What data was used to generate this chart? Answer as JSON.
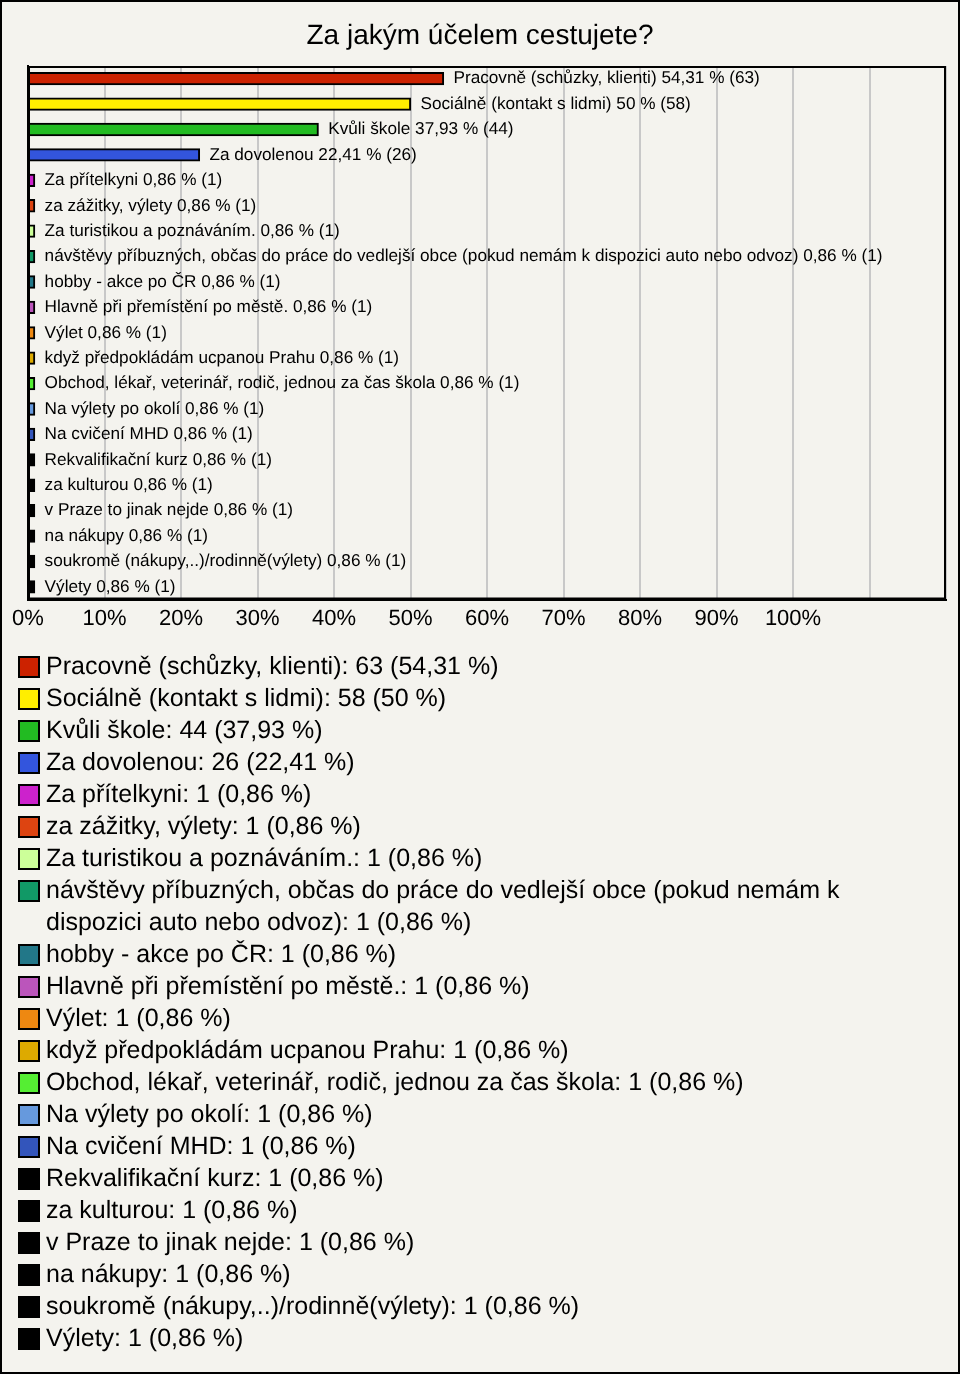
{
  "chart_data": {
    "type": "bar",
    "orientation": "horizontal",
    "title": "Za jakým účelem cestujete?",
    "categories": [
      "Pracovně (schůzky, klienti)",
      "Sociálně (kontakt s lidmi)",
      "Kvůli škole",
      "Za dovolenou",
      "Za přítelkyni",
      "za zážitky, výlety",
      "Za turistikou a poznáváním.",
      "návštěvy příbuzných, občas do práce do vedlejší obce (pokud nemám k dispozici auto nebo odvoz)",
      "hobby - akce po ČR",
      "Hlavně při přemístění po městě.",
      "Výlet",
      "když předpokládám ucpanou Prahu",
      "Obchod, lékař, veterinář, rodič, jednou za čas škola",
      "Na výlety po okolí",
      "Na cvičení MHD",
      "Rekvalifikační kurz",
      "za kulturou",
      "v Praze to jinak nejde",
      "na nákupy",
      "soukromě (nákupy,..)/rodinně(výlety)",
      "Výlety"
    ],
    "values": [
      54.31,
      50,
      37.93,
      22.41,
      0.86,
      0.86,
      0.86,
      0.86,
      0.86,
      0.86,
      0.86,
      0.86,
      0.86,
      0.86,
      0.86,
      0.86,
      0.86,
      0.86,
      0.86,
      0.86,
      0.86
    ],
    "value_labels": [
      "54,31 % (63)",
      "50 % (58)",
      "37,93 % (44)",
      "22,41 % (26)",
      "0,86 % (1)",
      "0,86 % (1)",
      "0,86 % (1)",
      "0,86 % (1)",
      "0,86 % (1)",
      "0,86 % (1)",
      "0,86 % (1)",
      "0,86 % (1)",
      "0,86 % (1)",
      "0,86 % (1)",
      "0,86 % (1)",
      "0,86 % (1)",
      "0,86 % (1)",
      "0,86 % (1)",
      "0,86 % (1)",
      "0,86 % (1)",
      "0,86 % (1)"
    ],
    "colors": [
      "#cc2200",
      "#ffee00",
      "#22bb22",
      "#3355dd",
      "#cc22cc",
      "#dd4411",
      "#ccff99",
      "#119966",
      "#227788",
      "#bb55bb",
      "#ee8811",
      "#ddaa00",
      "#55ee33",
      "#6699dd",
      "#3355bb",
      "#000000",
      "#000000",
      "#000000",
      "#000000",
      "#000000",
      "#000000"
    ],
    "xlim": [
      0,
      120
    ],
    "xticks": [
      {
        "value": 0,
        "label": "0%"
      },
      {
        "value": 10,
        "label": "10%"
      },
      {
        "value": 20,
        "label": "20%"
      },
      {
        "value": 30,
        "label": "30%"
      },
      {
        "value": 40,
        "label": "40%"
      },
      {
        "value": 50,
        "label": "50%"
      },
      {
        "value": 60,
        "label": "60%"
      },
      {
        "value": 70,
        "label": "70%"
      },
      {
        "value": 80,
        "label": "80%"
      },
      {
        "value": 90,
        "label": "90%"
      },
      {
        "value": 100,
        "label": "100%"
      },
      {
        "value": 110,
        "label": null
      },
      {
        "value": 120,
        "label": null
      }
    ],
    "grid": "x",
    "tick_labels": "x",
    "annotations": [
      "Pracovně (schůzky, klienti): 63 (54,31 %)",
      "Sociálně (kontakt s lidmi): 58 (50 %)",
      "Kvůli škole: 44 (37,93 %)",
      "Za dovolenou: 26 (22,41 %)",
      "Za přítelkyni: 1 (0,86 %)",
      "za zážitky, výlety: 1 (0,86 %)",
      "Za turistikou a poznáváním.: 1 (0,86 %)",
      "návštěvy příbuzných, občas do práce do vedlejší obce (pokud nemám k dispozici auto nebo odvoz): 1 (0,86 %)",
      "hobby - akce po ČR: 1 (0,86 %)",
      "Hlavně při přemístění po městě.: 1 (0,86 %)",
      "Výlet: 1 (0,86 %)",
      "když předpokládám ucpanou Prahu: 1 (0,86 %)",
      "Obchod, lékař, veterinář, rodič, jednou za čas škola: 1 (0,86 %)",
      "Na výlety po okolí: 1 (0,86 %)",
      "Na cvičení MHD: 1 (0,86 %)",
      "Rekvalifikační kurz: 1 (0,86 %)",
      "za kulturou: 1 (0,86 %)",
      "v Praze to jinak nejde: 1 (0,86 %)",
      "na nákupy: 1 (0,86 %)",
      "soukromě (nákupy,..)/rodinně(výlety): 1 (0,86 %)",
      "Výlety: 1 (0,86 %)"
    ]
  }
}
